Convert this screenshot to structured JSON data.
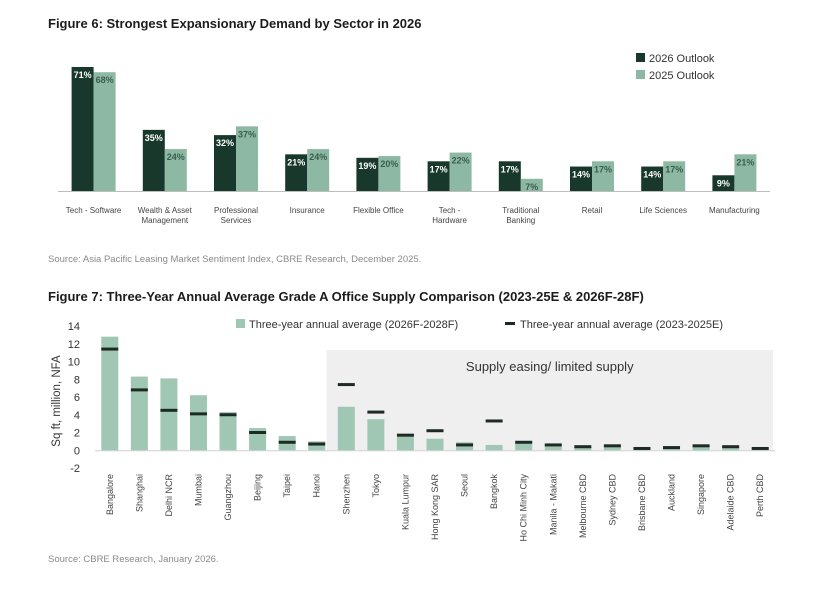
{
  "chart_data": [
    {
      "type": "bar",
      "title": "Figure 6: Strongest Expansionary Demand by Sector in 2026",
      "categories": [
        [
          "Tech - Software"
        ],
        [
          "Wealth & Asset",
          "Management"
        ],
        [
          "Professional",
          "Services"
        ],
        [
          "Insurance"
        ],
        [
          "Flexible Office"
        ],
        [
          "Tech -",
          "Hardware"
        ],
        [
          "Traditional",
          "Banking"
        ],
        [
          "Retail"
        ],
        [
          "Life Sciences"
        ],
        [
          "Manufacturing"
        ]
      ],
      "series": [
        {
          "name": "2026 Outlook",
          "color": "#17382a",
          "values": [
            71,
            35,
            32,
            21,
            19,
            17,
            17,
            14,
            14,
            9
          ]
        },
        {
          "name": "2025 Outlook",
          "color": "#8db8a4",
          "values": [
            68,
            24,
            37,
            24,
            20,
            22,
            7,
            17,
            17,
            21
          ]
        }
      ],
      "value_suffix": "%",
      "ylim": [
        0,
        75
      ],
      "source": "Source: Asia Pacific Leasing Market Sentiment Index, CBRE Research, December 2025."
    },
    {
      "type": "bar",
      "title": "Figure 7: Three-Year Annual Average Grade A Office Supply Comparison (2023-25E & 2026F-28F)",
      "ylabel": "Sq ft, million, NFA",
      "ylim": [
        -2,
        14
      ],
      "yticks": [
        14,
        12,
        10,
        8,
        6,
        4,
        2,
        0,
        -2
      ],
      "categories": [
        "Bangalore",
        "Shanghai",
        "Delhi NCR",
        "Mumbai",
        "Guangzhou",
        "Beijing",
        "Taipei",
        "Hanoi",
        "Shenzhen",
        "Tokyo",
        "Kuala Lumpur",
        "Hong Kong SAR",
        "Seoul",
        "Bangkok",
        "Ho Chi Minh City",
        "Manila - Makati",
        "Melbourne CBD",
        "Sydney CBD",
        "Brisbane CBD",
        "Auckland",
        "Singapore",
        "Adelaide CBD",
        "Perth CBD"
      ],
      "series": [
        {
          "name": "Three-year annual average (2026F-2028F)",
          "color": "#9fc7b4",
          "marker": "bar",
          "values": [
            12.8,
            8.3,
            8.1,
            6.2,
            4.3,
            2.5,
            1.6,
            1.0,
            4.9,
            3.5,
            1.6,
            1.3,
            0.9,
            0.6,
            0.9,
            0.6,
            0.4,
            0.5,
            0.3,
            0.3,
            0.5,
            0.4,
            0.2
          ]
        },
        {
          "name": "Three-year annual average (2023-2025E)",
          "color": "#1e2a24",
          "marker": "dash",
          "values": [
            11.4,
            6.8,
            4.5,
            4.1,
            4.0,
            2.0,
            0.9,
            0.7,
            7.4,
            4.3,
            1.7,
            2.2,
            0.6,
            3.3,
            0.9,
            0.6,
            0.4,
            0.5,
            0.2,
            0.3,
            0.5,
            0.4,
            0.2
          ]
        }
      ],
      "annotation": "Supply easing/ limited supply",
      "source": "Source: CBRE Research, January 2026."
    }
  ]
}
